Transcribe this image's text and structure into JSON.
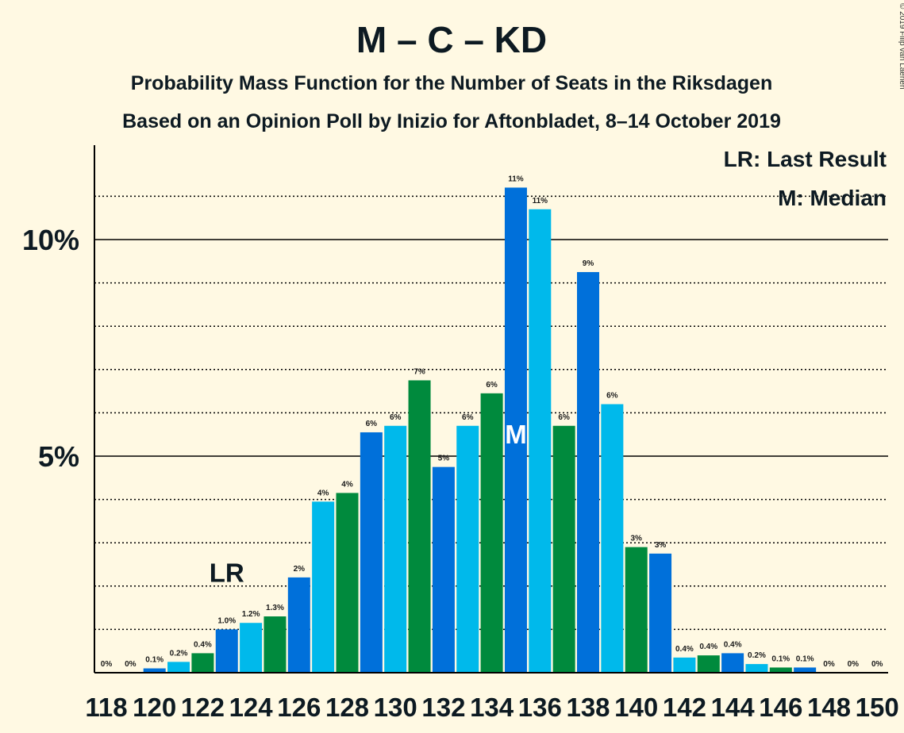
{
  "title": "M – C – KD",
  "subtitle1": "Probability Mass Function for the Number of Seats in the Riksdagen",
  "subtitle2": "Based on an Opinion Poll by Inizio for Aftonbladet, 8–14 October 2019",
  "copyright": "© 2019 Filip van Laenen",
  "legend": {
    "last_result": "LR: Last Result",
    "median": "M: Median"
  },
  "markers": {
    "last_result_label": "LR",
    "last_result_seat": 123,
    "median_label": "M",
    "median_seat": 135
  },
  "colors": {
    "background": "#fff9e3",
    "light_blue": "#00b9eb",
    "dark_green": "#008a3d",
    "blue": "#0070da",
    "axis": "#000000"
  },
  "chart_data": {
    "type": "bar",
    "x": [
      118,
      119,
      120,
      121,
      122,
      123,
      124,
      125,
      126,
      127,
      128,
      129,
      130,
      131,
      132,
      133,
      134,
      135,
      136,
      137,
      138,
      139,
      140,
      141,
      142,
      143,
      144,
      145,
      146,
      147,
      148,
      149,
      150
    ],
    "values": [
      0,
      0,
      0.1,
      0.25,
      0.45,
      1.0,
      1.15,
      1.3,
      2.2,
      3.95,
      4.15,
      5.55,
      5.7,
      6.75,
      4.75,
      5.7,
      6.45,
      11.2,
      10.7,
      5.7,
      9.25,
      6.2,
      2.9,
      2.75,
      0.35,
      0.4,
      0.45,
      0.2,
      0.12,
      0.12,
      0,
      0,
      0
    ],
    "data_labels": [
      "0%",
      "0%",
      "0.1%",
      "0.2%",
      "0.4%",
      "1.0%",
      "1.2%",
      "1.3%",
      "2%",
      "4%",
      "4%",
      "6%",
      "6%",
      "7%",
      "5%",
      "6%",
      "6%",
      "11%",
      "11%",
      "6%",
      "9%",
      "6%",
      "3%",
      "3%",
      "0.4%",
      "0.4%",
      "0.4%",
      "0.2%",
      "0.1%",
      "0.1%",
      "0%",
      "0%",
      "0%"
    ],
    "x_tick_labels": [
      "118",
      "120",
      "122",
      "124",
      "126",
      "128",
      "130",
      "132",
      "134",
      "136",
      "138",
      "140",
      "142",
      "144",
      "146",
      "148",
      "150"
    ],
    "y_ticks": [
      5,
      10
    ],
    "y_tick_labels": [
      "5%",
      "10%"
    ],
    "ylim": [
      0,
      12.2
    ],
    "grid": true
  }
}
